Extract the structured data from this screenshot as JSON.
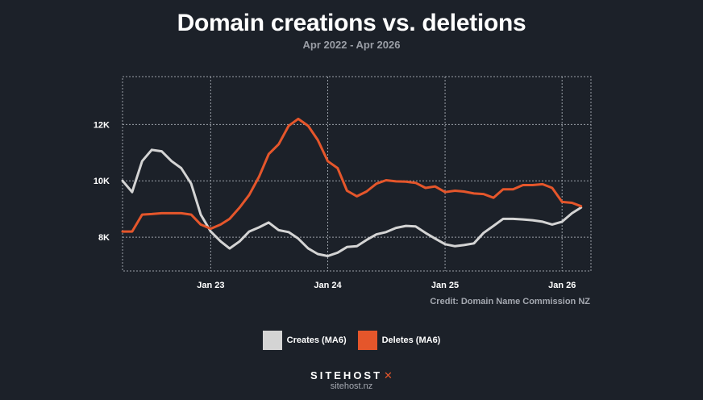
{
  "chart_data": {
    "type": "line",
    "title": "Domain creations vs. deletions",
    "subtitle": "Apr 2022 - Apr 2026",
    "x_ticks": [
      "Jan 23",
      "Jan 24",
      "Jan 25",
      "Jan 26"
    ],
    "y_ticks": [
      "8K",
      "10K",
      "12K"
    ],
    "x_range": [
      "2022-04",
      "2026-04"
    ],
    "ylim": [
      6800,
      13700
    ],
    "grid": true,
    "legend_position": "bottom-center",
    "series": [
      {
        "name": "Creates (MA6)",
        "color": "#d4d4d4",
        "points": [
          [
            "2022-04-01",
            10000
          ],
          [
            "2022-05-01",
            9600
          ],
          [
            "2022-06-01",
            10700
          ],
          [
            "2022-07-01",
            11100
          ],
          [
            "2022-08-01",
            11050
          ],
          [
            "2022-09-01",
            10700
          ],
          [
            "2022-10-01",
            10450
          ],
          [
            "2022-11-01",
            9900
          ],
          [
            "2022-12-01",
            8800
          ],
          [
            "2023-01-01",
            8200
          ],
          [
            "2023-02-01",
            7850
          ],
          [
            "2023-03-01",
            7600
          ],
          [
            "2023-04-01",
            7850
          ],
          [
            "2023-05-01",
            8200
          ],
          [
            "2023-06-01",
            8350
          ],
          [
            "2023-07-01",
            8520
          ],
          [
            "2023-08-01",
            8250
          ],
          [
            "2023-09-01",
            8180
          ],
          [
            "2023-10-01",
            7950
          ],
          [
            "2023-11-01",
            7600
          ],
          [
            "2023-12-01",
            7400
          ],
          [
            "2024-01-01",
            7330
          ],
          [
            "2024-02-01",
            7450
          ],
          [
            "2024-03-01",
            7650
          ],
          [
            "2024-04-01",
            7680
          ],
          [
            "2024-05-01",
            7900
          ],
          [
            "2024-06-01",
            8100
          ],
          [
            "2024-07-01",
            8180
          ],
          [
            "2024-08-01",
            8330
          ],
          [
            "2024-09-01",
            8400
          ],
          [
            "2024-10-01",
            8380
          ],
          [
            "2024-11-01",
            8150
          ],
          [
            "2024-12-01",
            7950
          ],
          [
            "2025-01-01",
            7750
          ],
          [
            "2025-02-01",
            7680
          ],
          [
            "2025-03-01",
            7720
          ],
          [
            "2025-04-01",
            7780
          ],
          [
            "2025-05-01",
            8150
          ],
          [
            "2025-06-01",
            8400
          ],
          [
            "2025-07-01",
            8650
          ],
          [
            "2025-08-01",
            8650
          ],
          [
            "2025-09-01",
            8630
          ],
          [
            "2025-10-01",
            8600
          ],
          [
            "2025-11-01",
            8550
          ],
          [
            "2025-12-01",
            8450
          ],
          [
            "2026-01-01",
            8550
          ],
          [
            "2026-02-01",
            8850
          ],
          [
            "2026-03-01",
            9050
          ]
        ]
      },
      {
        "name": "Deletes (MA6)",
        "color": "#e5562b",
        "points": [
          [
            "2022-04-01",
            8200
          ],
          [
            "2022-05-01",
            8200
          ],
          [
            "2022-06-01",
            8800
          ],
          [
            "2022-07-01",
            8820
          ],
          [
            "2022-08-01",
            8850
          ],
          [
            "2022-09-01",
            8850
          ],
          [
            "2022-10-01",
            8850
          ],
          [
            "2022-11-01",
            8800
          ],
          [
            "2022-12-01",
            8450
          ],
          [
            "2023-01-01",
            8300
          ],
          [
            "2023-02-01",
            8450
          ],
          [
            "2023-03-01",
            8650
          ],
          [
            "2023-04-01",
            9050
          ],
          [
            "2023-05-01",
            9500
          ],
          [
            "2023-06-01",
            10150
          ],
          [
            "2023-07-01",
            10950
          ],
          [
            "2023-08-01",
            11300
          ],
          [
            "2023-09-01",
            11950
          ],
          [
            "2023-10-01",
            12200
          ],
          [
            "2023-11-01",
            11950
          ],
          [
            "2023-12-01",
            11450
          ],
          [
            "2024-01-01",
            10700
          ],
          [
            "2024-02-01",
            10450
          ],
          [
            "2024-03-01",
            9650
          ],
          [
            "2024-04-01",
            9450
          ],
          [
            "2024-05-01",
            9620
          ],
          [
            "2024-06-01",
            9900
          ],
          [
            "2024-07-01",
            10020
          ],
          [
            "2024-08-01",
            9980
          ],
          [
            "2024-09-01",
            9970
          ],
          [
            "2024-10-01",
            9930
          ],
          [
            "2024-11-01",
            9750
          ],
          [
            "2024-12-01",
            9800
          ],
          [
            "2025-01-01",
            9600
          ],
          [
            "2025-02-01",
            9650
          ],
          [
            "2025-03-01",
            9620
          ],
          [
            "2025-04-01",
            9550
          ],
          [
            "2025-05-01",
            9530
          ],
          [
            "2025-06-01",
            9400
          ],
          [
            "2025-07-01",
            9700
          ],
          [
            "2025-08-01",
            9700
          ],
          [
            "2025-09-01",
            9850
          ],
          [
            "2025-10-01",
            9850
          ],
          [
            "2025-11-01",
            9880
          ],
          [
            "2025-12-01",
            9750
          ],
          [
            "2026-01-01",
            9250
          ],
          [
            "2026-02-01",
            9220
          ],
          [
            "2026-03-01",
            9100
          ]
        ]
      }
    ]
  },
  "credit": "Credit: Domain Name Commission NZ",
  "brand": {
    "name": "SITEHOST",
    "mark": "✕",
    "url": "sitehost.nz"
  },
  "colors": {
    "background": "#1c2129",
    "grid": "#9aa0a8",
    "creates": "#d4d4d4",
    "deletes": "#e5562b"
  }
}
